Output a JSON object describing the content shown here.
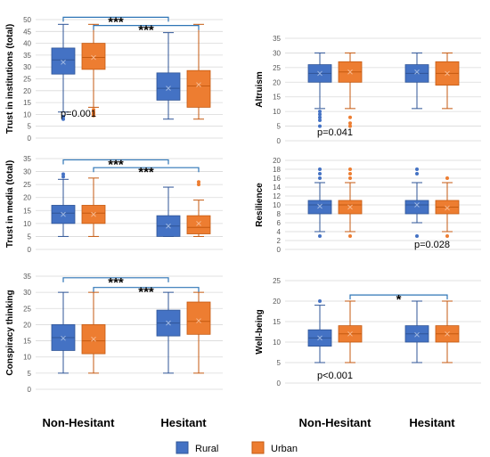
{
  "colors": {
    "rural": "#4472C4",
    "rural_edge": "#2F5597",
    "urban": "#ED7D31",
    "urban_edge": "#C55A11",
    "bracket": "#2E75B6",
    "grid": "#D9D9D9",
    "axis_text": "#595959"
  },
  "group_labels": [
    "Non-Hesitant",
    "Hesitant"
  ],
  "legend": {
    "rural": "Rural",
    "urban": "Urban"
  },
  "chart_data": [
    {
      "type": "box",
      "panel": "trust-in-institutions",
      "ylabel": "Trust in institutions (total)",
      "ylim": [
        0,
        50
      ],
      "yticks": [
        0,
        5,
        10,
        15,
        20,
        25,
        30,
        35,
        40,
        45,
        50
      ],
      "groups": [
        "Non-Hesitant",
        "Hesitant"
      ],
      "series": [
        {
          "name": "Rural",
          "boxes": [
            {
              "min": 11,
              "q1": 27,
              "median": 33,
              "q3": 38,
              "max": 48,
              "mean": 32,
              "outliers": [
                8,
                9
              ]
            },
            {
              "min": 8,
              "q1": 16,
              "median": 21,
              "q3": 27.5,
              "max": 44.5,
              "mean": 21,
              "outliers": []
            }
          ]
        },
        {
          "name": "Urban",
          "boxes": [
            {
              "min": 13,
              "q1": 29,
              "median": 34,
              "q3": 40,
              "max": 48,
              "mean": 34,
              "outliers": [
                9.5,
                10,
                10.5,
                11,
                12
              ]
            },
            {
              "min": 8,
              "q1": 13,
              "median": 22,
              "q3": 28.5,
              "max": 48,
              "mean": 22.5,
              "outliers": []
            }
          ]
        }
      ],
      "annotations": [
        {
          "text": "p=0.001",
          "x_group": 0,
          "y": 10.5
        },
        {
          "text": "***",
          "type": "bracket",
          "from": "Non-Hesitant-Rural",
          "to": "Hesitant-Rural",
          "y": 51
        },
        {
          "text": "***",
          "type": "bracket",
          "from": "Non-Hesitant-Urban",
          "to": "Hesitant-Urban",
          "y": 47.5
        }
      ]
    },
    {
      "type": "box",
      "panel": "altruism",
      "ylabel": "Altruism",
      "ylim": [
        0,
        35
      ],
      "yticks": [
        0,
        5,
        10,
        15,
        20,
        25,
        30,
        35
      ],
      "groups": [
        "Non-Hesitant",
        "Hesitant"
      ],
      "series": [
        {
          "name": "Rural",
          "boxes": [
            {
              "min": 11,
              "q1": 20,
              "median": 23,
              "q3": 26,
              "max": 30,
              "mean": 23,
              "outliers": [
                5,
                7,
                8,
                9,
                10
              ]
            },
            {
              "min": 11,
              "q1": 20,
              "median": 23,
              "q3": 26,
              "max": 30,
              "mean": 23.5,
              "outliers": []
            }
          ]
        },
        {
          "name": "Urban",
          "boxes": [
            {
              "min": 11,
              "q1": 20,
              "median": 23.5,
              "q3": 27,
              "max": 30,
              "mean": 23.5,
              "outliers": [
                5,
                6,
                8
              ]
            },
            {
              "min": 11,
              "q1": 19,
              "median": 23,
              "q3": 27,
              "max": 30,
              "mean": 23,
              "outliers": []
            }
          ]
        }
      ],
      "annotations": [
        {
          "text": "p=0.041",
          "x_group": 0,
          "y": 3
        }
      ]
    },
    {
      "type": "box",
      "panel": "trust-in-media",
      "ylabel": "Trust in media (total)",
      "ylim": [
        0,
        35
      ],
      "yticks": [
        0,
        5,
        10,
        15,
        20,
        25,
        30,
        35
      ],
      "groups": [
        "Non-Hesitant",
        "Hesitant"
      ],
      "series": [
        {
          "name": "Rural",
          "boxes": [
            {
              "min": 5,
              "q1": 10,
              "median": 14,
              "q3": 17,
              "max": 27,
              "mean": 13.5,
              "outliers": [
                28,
                29
              ]
            },
            {
              "min": 5,
              "q1": 5,
              "median": 9,
              "q3": 13,
              "max": 24,
              "mean": 9,
              "outliers": []
            }
          ]
        },
        {
          "name": "Urban",
          "boxes": [
            {
              "min": 5,
              "q1": 10,
              "median": 14,
              "q3": 17,
              "max": 27.5,
              "mean": 13.5,
              "outliers": []
            },
            {
              "min": 5,
              "q1": 6,
              "median": 8.5,
              "q3": 13,
              "max": 19,
              "mean": 10,
              "outliers": [
                25,
                26
              ]
            }
          ]
        }
      ],
      "annotations": [
        {
          "text": "***",
          "type": "bracket",
          "from": "Non-Hesitant-Rural",
          "to": "Hesitant-Rural",
          "y": 34.5
        },
        {
          "text": "***",
          "type": "bracket",
          "from": "Non-Hesitant-Urban",
          "to": "Hesitant-Urban",
          "y": 31.5
        }
      ]
    },
    {
      "type": "box",
      "panel": "resilience",
      "ylabel": "Resilience",
      "ylim": [
        0,
        20
      ],
      "yticks": [
        0,
        2,
        4,
        6,
        8,
        10,
        12,
        14,
        16,
        18,
        20
      ],
      "groups": [
        "Non-Hesitant",
        "Hesitant"
      ],
      "series": [
        {
          "name": "Rural",
          "boxes": [
            {
              "min": 4,
              "q1": 8,
              "median": 10,
              "q3": 11,
              "max": 15,
              "mean": 9.7,
              "outliers": [
                3,
                16,
                17,
                18
              ]
            },
            {
              "min": 6,
              "q1": 8,
              "median": 10,
              "q3": 11,
              "max": 15,
              "mean": 10,
              "outliers": [
                3,
                17,
                18
              ]
            }
          ]
        },
        {
          "name": "Urban",
          "boxes": [
            {
              "min": 4,
              "q1": 8,
              "median": 10,
              "q3": 11,
              "max": 15,
              "mean": 9.5,
              "outliers": [
                3,
                16,
                17,
                18
              ]
            },
            {
              "min": 4,
              "q1": 8,
              "median": 9.5,
              "q3": 11,
              "max": 15,
              "mean": 9.3,
              "outliers": [
                3,
                16
              ]
            }
          ]
        }
      ],
      "annotations": [
        {
          "text": "p=0.028",
          "x_group": 1,
          "y": 1.2
        }
      ]
    },
    {
      "type": "box",
      "panel": "conspiracy-thinking",
      "ylabel": "Conspiracy thinking",
      "ylim": [
        0,
        35
      ],
      "yticks": [
        0,
        5,
        10,
        15,
        20,
        25,
        30,
        35
      ],
      "groups": [
        "Non-Hesitant",
        "Hesitant"
      ],
      "series": [
        {
          "name": "Rural",
          "boxes": [
            {
              "min": 5,
              "q1": 12,
              "median": 16,
              "q3": 20,
              "max": 30,
              "mean": 15.8,
              "outliers": []
            },
            {
              "min": 5,
              "q1": 16.5,
              "median": 20.5,
              "q3": 24.5,
              "max": 30,
              "mean": 20.5,
              "outliers": []
            }
          ]
        },
        {
          "name": "Urban",
          "boxes": [
            {
              "min": 5,
              "q1": 11,
              "median": 15,
              "q3": 20,
              "max": 30,
              "mean": 15.5,
              "outliers": []
            },
            {
              "min": 5,
              "q1": 17,
              "median": 21,
              "q3": 27,
              "max": 30,
              "mean": 21.2,
              "outliers": []
            }
          ]
        }
      ],
      "annotations": [
        {
          "text": "***",
          "type": "bracket",
          "from": "Non-Hesitant-Rural",
          "to": "Hesitant-Rural",
          "y": 34.5
        },
        {
          "text": "***",
          "type": "bracket",
          "from": "Non-Hesitant-Urban",
          "to": "Hesitant-Urban",
          "y": 31.5
        }
      ]
    },
    {
      "type": "box",
      "panel": "well-being",
      "ylabel": "Well-being",
      "ylim": [
        0,
        25
      ],
      "yticks": [
        0,
        5,
        10,
        15,
        20,
        25
      ],
      "groups": [
        "Non-Hesitant",
        "Hesitant"
      ],
      "series": [
        {
          "name": "Rural",
          "boxes": [
            {
              "min": 5,
              "q1": 9,
              "median": 11,
              "q3": 13,
              "max": 19,
              "mean": 11,
              "outliers": [
                20
              ]
            },
            {
              "min": 5,
              "q1": 10,
              "median": 12,
              "q3": 14,
              "max": 20,
              "mean": 11.8,
              "outliers": []
            }
          ]
        },
        {
          "name": "Urban",
          "boxes": [
            {
              "min": 5,
              "q1": 10,
              "median": 12,
              "q3": 14,
              "max": 20,
              "mean": 12,
              "outliers": []
            },
            {
              "min": 5,
              "q1": 10,
              "median": 12,
              "q3": 14,
              "max": 20,
              "mean": 12,
              "outliers": []
            }
          ]
        }
      ],
      "annotations": [
        {
          "text": "*",
          "type": "bracket",
          "from": "Non-Hesitant-Urban",
          "to": "Hesitant-Urban",
          "y": 21.5
        },
        {
          "text": "p<0.001",
          "x_group": 0,
          "y": 2
        }
      ]
    }
  ]
}
